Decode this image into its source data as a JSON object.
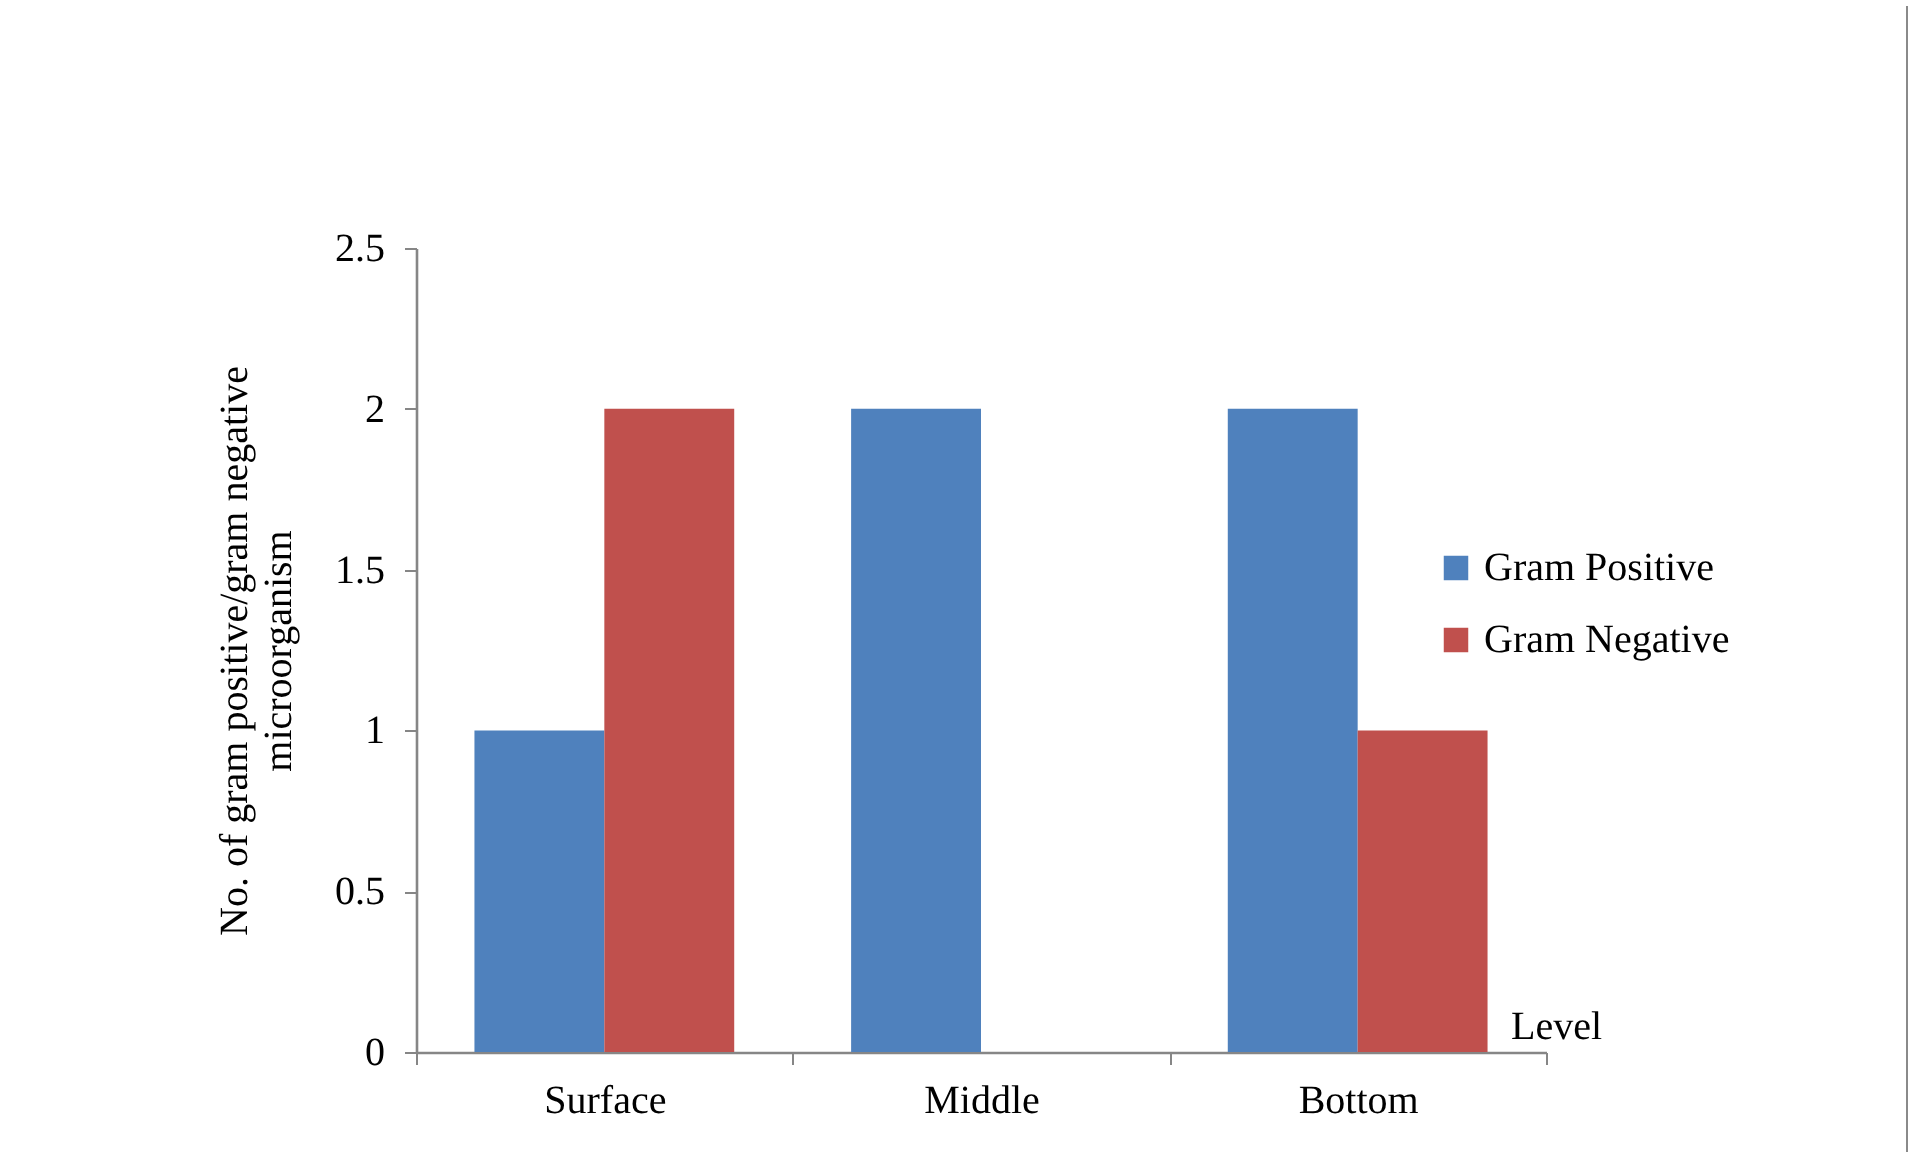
{
  "chart_data": {
    "type": "bar",
    "xlabel": "Level",
    "ylabel": "No. of gram positive/gram negative\nmicroorganism",
    "categories": [
      "Surface",
      "Middle",
      "Bottom"
    ],
    "series": [
      {
        "name": "Gram Positive",
        "color": "#4f81bd",
        "values": [
          1,
          2,
          2
        ]
      },
      {
        "name": "Gram Negative",
        "color": "#c0504d",
        "values": [
          2,
          0,
          1
        ]
      }
    ],
    "ylim": [
      0,
      2.5
    ],
    "yticks": [
      0,
      0.5,
      1,
      1.5,
      2,
      2.5
    ],
    "grid": false,
    "legend": "right"
  }
}
